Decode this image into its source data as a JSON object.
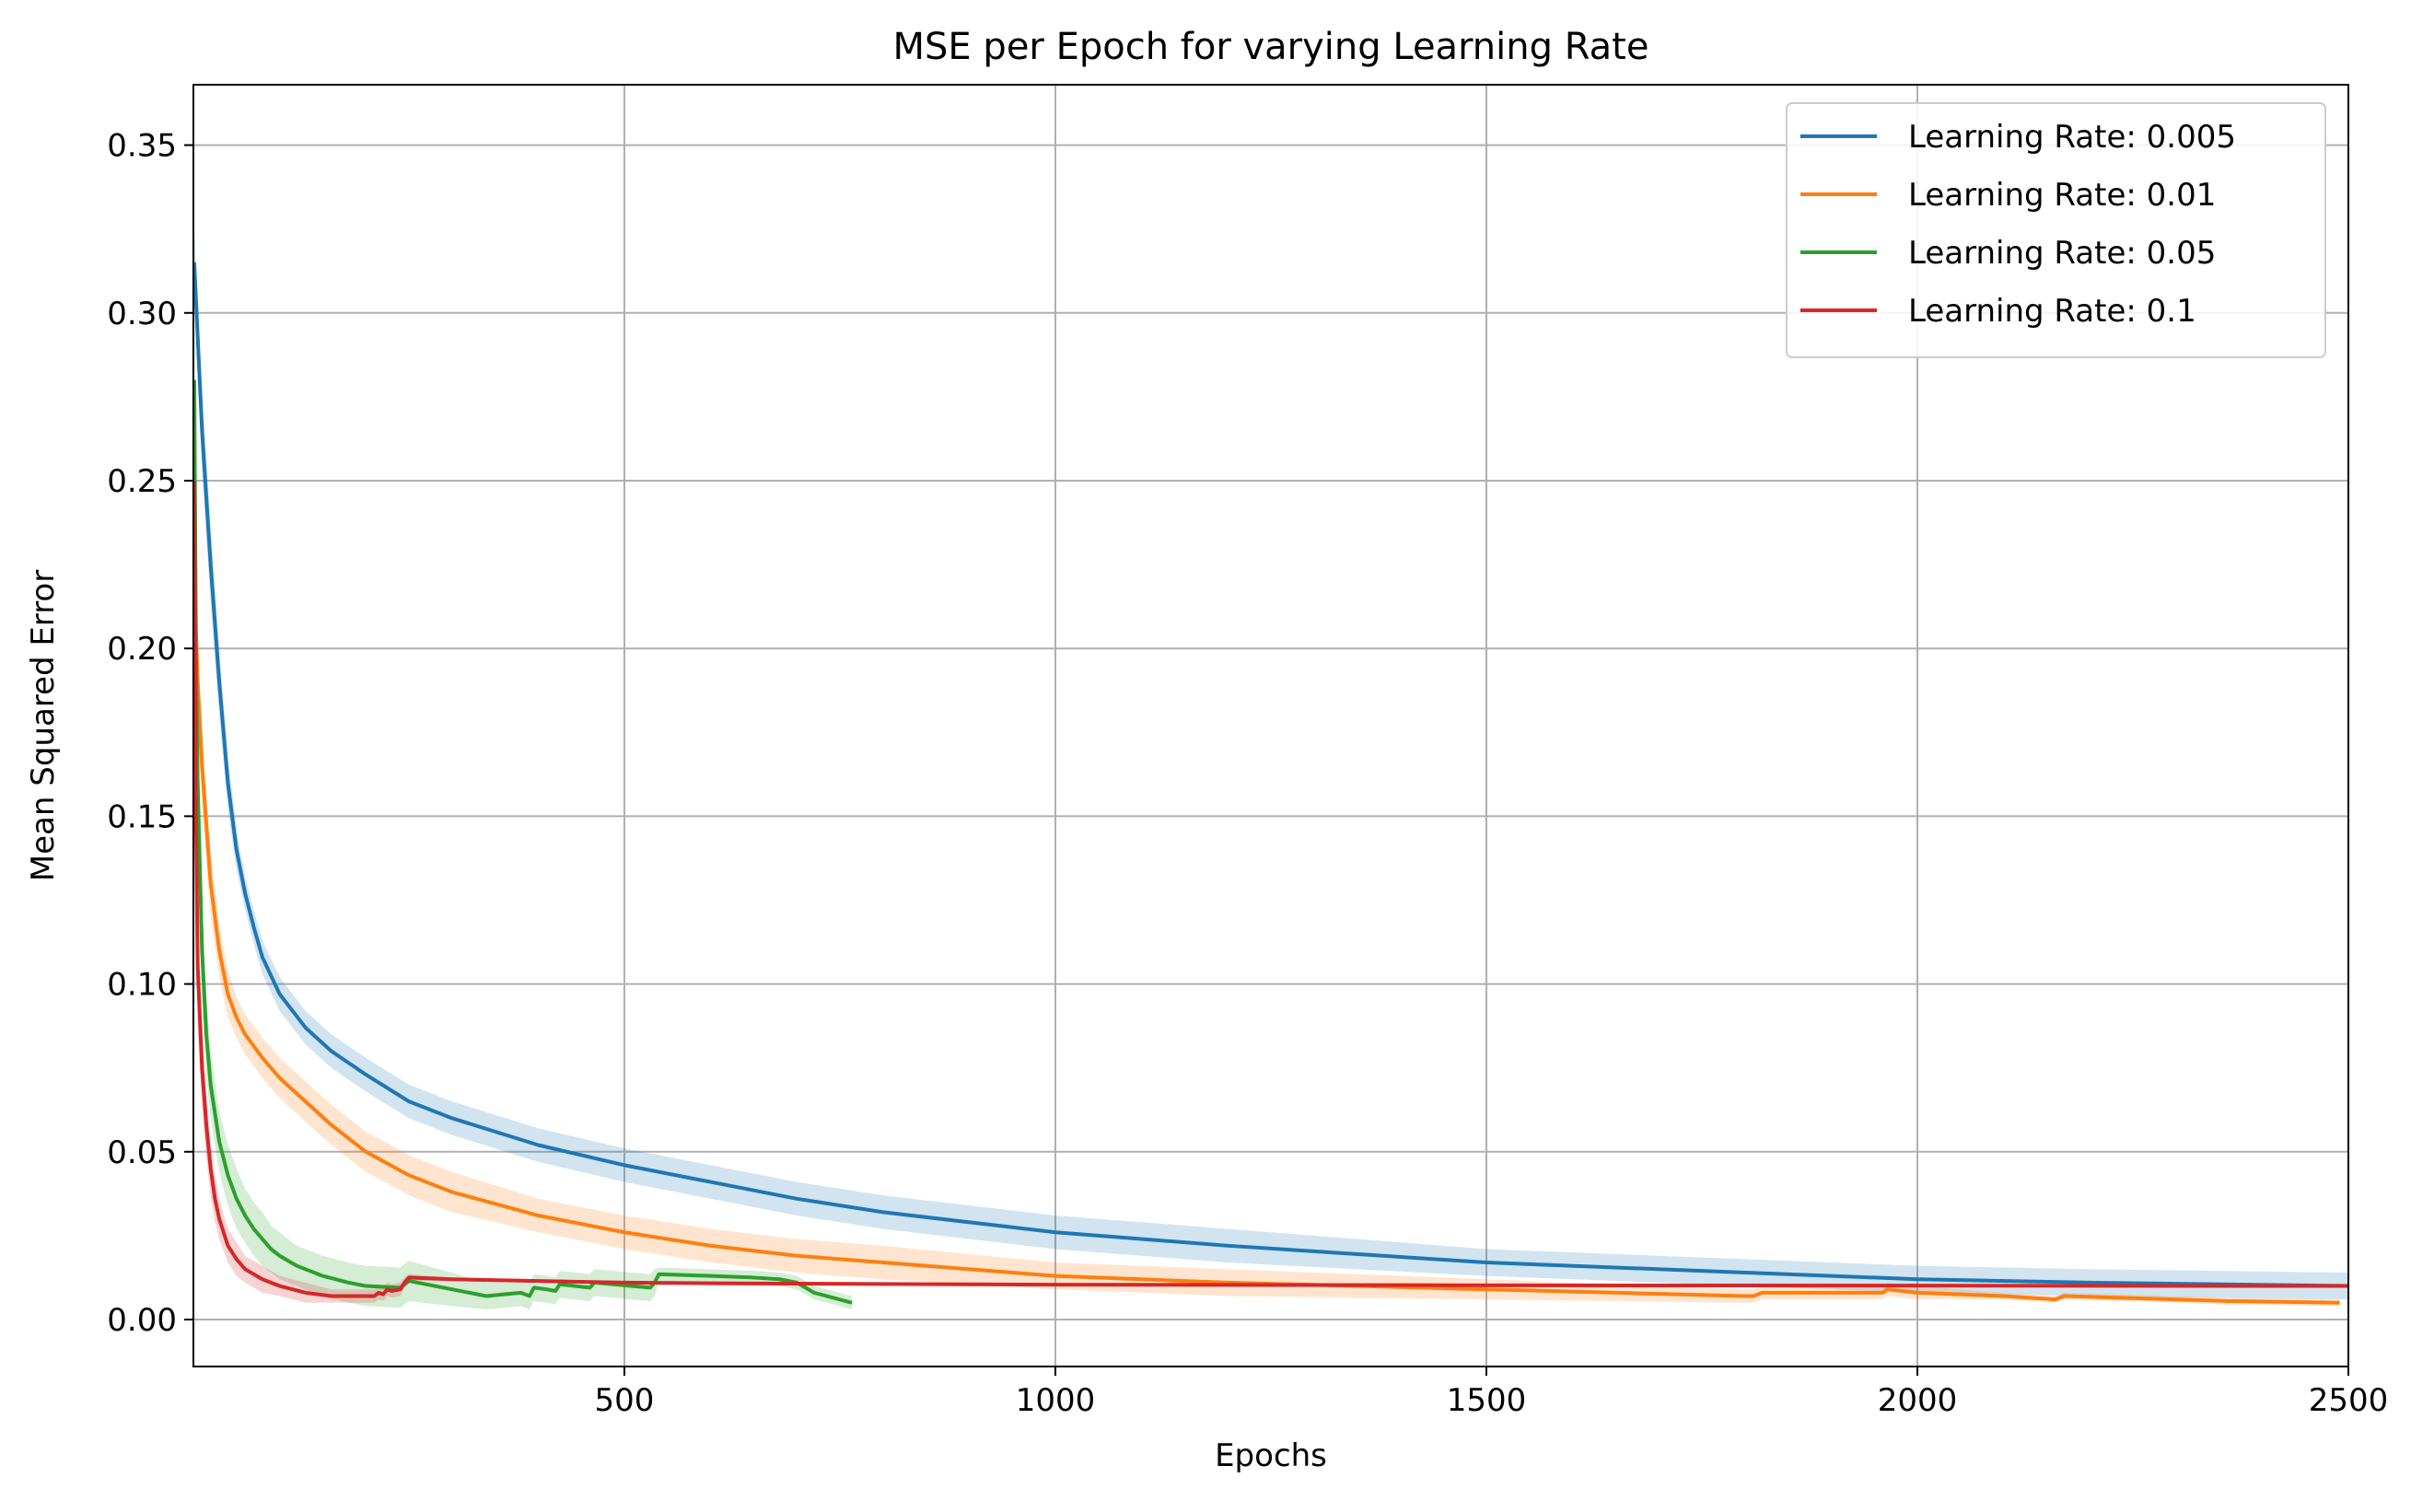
{
  "chart_data": {
    "type": "line",
    "title": "MSE per Epoch for varying Learning Rate",
    "xlabel": "Epochs",
    "ylabel": "Mean Squared Error",
    "xlim": [
      0,
      2500
    ],
    "ylim": [
      -0.014,
      0.368
    ],
    "xticks": [
      500,
      1000,
      1500,
      2000,
      2500
    ],
    "xtick_labels": [
      "500",
      "1000",
      "1500",
      "2000",
      "2500"
    ],
    "yticks": [
      0.0,
      0.05,
      0.1,
      0.15,
      0.2,
      0.25,
      0.3,
      0.35
    ],
    "ytick_labels": [
      "0.00",
      "0.05",
      "0.10",
      "0.15",
      "0.20",
      "0.25",
      "0.30",
      "0.35"
    ],
    "grid": true,
    "legend_position": "top-right",
    "series": [
      {
        "name": "Learning Rate: 0.005",
        "color": "#1f77b4",
        "x": [
          1,
          10,
          20,
          30,
          40,
          50,
          60,
          70,
          80,
          100,
          130,
          160,
          200,
          250,
          300,
          400,
          500,
          600,
          700,
          800,
          1000,
          1200,
          1500,
          1800,
          2000,
          2200,
          2500
        ],
        "y": [
          0.315,
          0.265,
          0.225,
          0.19,
          0.16,
          0.14,
          0.127,
          0.117,
          0.108,
          0.097,
          0.087,
          0.08,
          0.073,
          0.065,
          0.06,
          0.052,
          0.046,
          0.041,
          0.036,
          0.032,
          0.026,
          0.022,
          0.017,
          0.014,
          0.012,
          0.011,
          0.01
        ],
        "band": [
          0.01,
          0.012,
          0.012,
          0.01,
          0.008,
          0.006,
          0.005,
          0.005,
          0.005,
          0.005,
          0.005,
          0.005,
          0.005,
          0.005,
          0.005,
          0.005,
          0.005,
          0.005,
          0.005,
          0.005,
          0.005,
          0.005,
          0.004,
          0.004,
          0.004,
          0.004,
          0.004
        ]
      },
      {
        "name": "Learning Rate: 0.01",
        "color": "#ff7f0e",
        "x": [
          1,
          5,
          10,
          20,
          30,
          40,
          50,
          60,
          80,
          100,
          130,
          160,
          200,
          250,
          300,
          400,
          500,
          600,
          700,
          800,
          1000,
          1200,
          1500,
          1800,
          1810,
          1820,
          1900,
          1960,
          1965,
          2000,
          2100,
          2160,
          2170,
          2300,
          2360,
          2370,
          2490
        ],
        "y": [
          0.22,
          0.19,
          0.165,
          0.13,
          0.11,
          0.097,
          0.09,
          0.085,
          0.078,
          0.072,
          0.065,
          0.058,
          0.05,
          0.043,
          0.038,
          0.031,
          0.026,
          0.022,
          0.019,
          0.017,
          0.013,
          0.011,
          0.009,
          0.007,
          0.007,
          0.008,
          0.008,
          0.008,
          0.009,
          0.008,
          0.007,
          0.006,
          0.007,
          0.006,
          0.0055,
          0.0055,
          0.005
        ],
        "band": [
          0.012,
          0.012,
          0.012,
          0.01,
          0.008,
          0.007,
          0.006,
          0.006,
          0.006,
          0.006,
          0.006,
          0.006,
          0.006,
          0.006,
          0.006,
          0.005,
          0.005,
          0.005,
          0.005,
          0.005,
          0.004,
          0.004,
          0.003,
          0.002,
          0.002,
          0.002,
          0.002,
          0.002,
          0.002,
          0.002,
          0.001,
          0.001,
          0.001,
          0.001,
          0.001,
          0.001,
          0.001
        ]
      },
      {
        "name": "Learning Rate: 0.05",
        "color": "#2ca02c",
        "x": [
          1,
          3,
          5,
          10,
          15,
          20,
          30,
          40,
          50,
          60,
          70,
          80,
          90,
          100,
          120,
          150,
          180,
          200,
          240,
          250,
          300,
          340,
          360,
          380,
          390,
          395,
          410,
          420,
          425,
          460,
          465,
          530,
          535,
          540,
          600,
          650,
          680,
          700,
          720,
          764
        ],
        "y": [
          0.28,
          0.2,
          0.16,
          0.11,
          0.085,
          0.07,
          0.053,
          0.043,
          0.036,
          0.031,
          0.027,
          0.024,
          0.021,
          0.019,
          0.016,
          0.013,
          0.011,
          0.01,
          0.0095,
          0.0115,
          0.009,
          0.007,
          0.0075,
          0.008,
          0.007,
          0.0095,
          0.009,
          0.0085,
          0.0105,
          0.0095,
          0.011,
          0.0095,
          0.011,
          0.0135,
          0.013,
          0.0125,
          0.012,
          0.011,
          0.008,
          0.005
        ],
        "band": [
          0.015,
          0.02,
          0.02,
          0.015,
          0.012,
          0.01,
          0.009,
          0.009,
          0.009,
          0.008,
          0.008,
          0.008,
          0.007,
          0.007,
          0.006,
          0.006,
          0.006,
          0.006,
          0.006,
          0.006,
          0.005,
          0.004,
          0.004,
          0.004,
          0.004,
          0.004,
          0.004,
          0.004,
          0.004,
          0.004,
          0.004,
          0.004,
          0.004,
          0.002,
          0.002,
          0.002,
          0.002,
          0.002,
          0.002,
          0.002
        ]
      },
      {
        "name": "Learning Rate: 0.1",
        "color": "#d62728",
        "x": [
          1,
          3,
          5,
          10,
          15,
          20,
          25,
          30,
          40,
          50,
          60,
          80,
          100,
          130,
          160,
          180,
          200,
          210,
          215,
          220,
          225,
          230,
          240,
          245,
          250,
          300,
          400,
          500,
          600,
          800,
          1000,
          1500,
          2000,
          2500
        ],
        "y": [
          0.25,
          0.15,
          0.105,
          0.075,
          0.058,
          0.045,
          0.036,
          0.03,
          0.022,
          0.018,
          0.015,
          0.012,
          0.01,
          0.008,
          0.007,
          0.007,
          0.007,
          0.007,
          0.008,
          0.0075,
          0.009,
          0.0085,
          0.009,
          0.011,
          0.0125,
          0.012,
          0.0115,
          0.011,
          0.0108,
          0.0106,
          0.0104,
          0.0102,
          0.0101,
          0.01
        ],
        "band": [
          0.015,
          0.02,
          0.018,
          0.012,
          0.01,
          0.008,
          0.007,
          0.006,
          0.005,
          0.005,
          0.004,
          0.004,
          0.003,
          0.003,
          0.002,
          0.002,
          0.002,
          0.002,
          0.002,
          0.002,
          0.002,
          0.002,
          0.002,
          0.0015,
          0.001,
          0.0005,
          0.0005,
          0.0005,
          0.0005,
          0.0005,
          0.0005,
          0.0005,
          0.0005,
          0.0005
        ]
      }
    ]
  }
}
